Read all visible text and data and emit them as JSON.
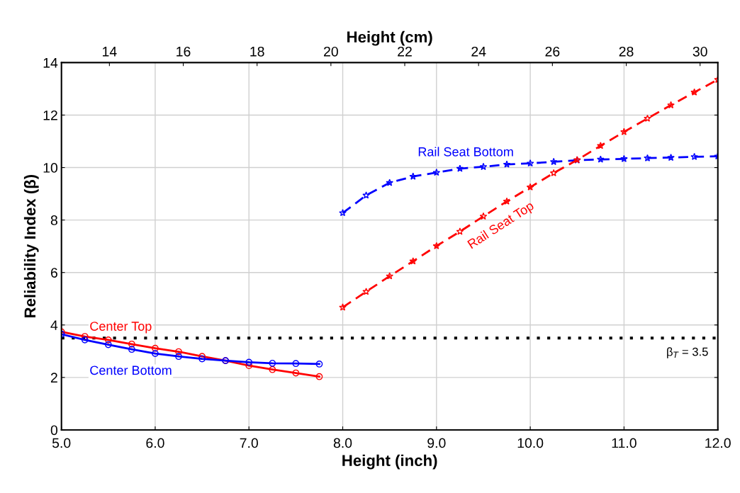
{
  "chart_data": {
    "type": "line",
    "xlabel": "Height (inch)",
    "ylabel": "Reliability Index (β)",
    "x2label": "Height (cm)",
    "xlim": [
      5.0,
      12.0
    ],
    "xticks": [
      {
        "value": 5,
        "label": "5.0"
      },
      {
        "value": 6,
        "label": "6.0"
      },
      {
        "value": 7,
        "label": "7.0"
      },
      {
        "value": 8,
        "label": "8.0"
      },
      {
        "value": 9,
        "label": "9.0"
      },
      {
        "value": 10,
        "label": "10.0"
      },
      {
        "value": 11,
        "label": "11.0"
      },
      {
        "value": 12,
        "label": "12.0"
      }
    ],
    "x2lim": [
      12.7,
      30.48
    ],
    "x2ticks": [
      14,
      16,
      18,
      20,
      22,
      24,
      26,
      28,
      30
    ],
    "ylim": [
      0,
      14
    ],
    "yticks": [
      0,
      2,
      4,
      6,
      8,
      10,
      12,
      14
    ],
    "grid": true,
    "series": [
      {
        "name": "Center Top",
        "color": "#ff0000",
        "marker": "circle",
        "line_style": "solid",
        "x": [
          5.0,
          5.25,
          5.5,
          5.75,
          6.0,
          6.25,
          6.5,
          6.75,
          7.0,
          7.25,
          7.5,
          7.75
        ],
        "values": [
          3.74,
          3.56,
          3.43,
          3.27,
          3.11,
          2.98,
          2.8,
          2.64,
          2.45,
          2.3,
          2.17,
          2.03
        ]
      },
      {
        "name": "Center Bottom",
        "color": "#0000ff",
        "marker": "circle",
        "line_style": "solid",
        "x": [
          5.0,
          5.25,
          5.5,
          5.75,
          6.0,
          6.25,
          6.5,
          6.75,
          7.0,
          7.25,
          7.5,
          7.75
        ],
        "values": [
          3.65,
          3.43,
          3.25,
          3.07,
          2.91,
          2.8,
          2.71,
          2.64,
          2.58,
          2.54,
          2.53,
          2.51
        ]
      },
      {
        "name": "Rail Seat Bottom",
        "color": "#0000ff",
        "marker": "star",
        "line_style": "dashed",
        "x": [
          8.0,
          8.25,
          8.5,
          8.75,
          9.0,
          9.25,
          9.5,
          9.75,
          10.0,
          10.25,
          10.5,
          10.75,
          11.0,
          11.25,
          11.5,
          11.75,
          12.0
        ],
        "values": [
          8.27,
          8.94,
          9.42,
          9.66,
          9.81,
          9.96,
          10.03,
          10.12,
          10.16,
          10.22,
          10.28,
          10.31,
          10.33,
          10.36,
          10.38,
          10.41,
          10.43
        ]
      },
      {
        "name": "Rail Seat Top",
        "color": "#ff0000",
        "marker": "star",
        "line_style": "dashed",
        "x": [
          8.0,
          8.25,
          8.5,
          8.75,
          9.0,
          9.25,
          9.5,
          9.75,
          10.0,
          10.25,
          10.5,
          10.75,
          11.0,
          11.25,
          11.5,
          11.75,
          12.0
        ],
        "values": [
          4.67,
          5.27,
          5.86,
          6.43,
          7.01,
          7.56,
          8.14,
          8.71,
          9.25,
          9.79,
          10.29,
          10.83,
          11.36,
          11.87,
          12.38,
          12.87,
          13.35
        ]
      }
    ],
    "ref_lines": [
      {
        "axis": "y",
        "value": 3.5,
        "label": "β$_{T}$ = 3.5",
        "color": "#000000",
        "line_style": "dotted"
      }
    ]
  }
}
